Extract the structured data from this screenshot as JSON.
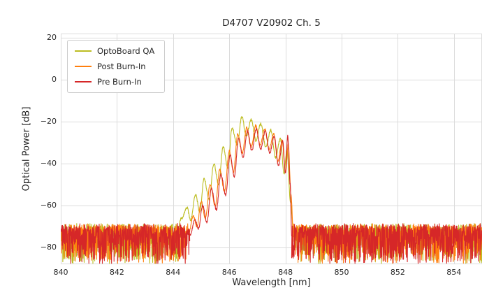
{
  "chart_data": {
    "type": "line",
    "title": "D4707 V20902 Ch. 5",
    "xlabel": "Wavelength [nm]",
    "ylabel": "Optical Power [dB]",
    "xlim": [
      840,
      855
    ],
    "ylim": [
      -88,
      22
    ],
    "xticks": [
      840,
      842,
      844,
      846,
      848,
      850,
      852,
      854
    ],
    "yticks": [
      20,
      0,
      -20,
      -40,
      -60,
      -80
    ],
    "grid": true,
    "legend_position": "upper-left",
    "background_color": "#ffffff",
    "grid_color": "#dcdcdc",
    "text_color": "#262626",
    "series": [
      {
        "name": "OptoBoard QA",
        "color": "#bcbd22",
        "signal_range": [
          844.15,
          848.32
        ],
        "noise": {
          "seed": 7,
          "floor_top_db": -70,
          "spike_depth_db": 17
        },
        "envelope": [
          [
            844.15,
            -72
          ],
          [
            844.3,
            -66
          ],
          [
            844.5,
            -61
          ],
          [
            844.62,
            -67
          ],
          [
            844.8,
            -55
          ],
          [
            844.95,
            -63
          ],
          [
            845.1,
            -47
          ],
          [
            845.28,
            -57
          ],
          [
            845.45,
            -40
          ],
          [
            845.62,
            -50
          ],
          [
            845.78,
            -32
          ],
          [
            845.95,
            -42
          ],
          [
            846.1,
            -23
          ],
          [
            846.28,
            -31
          ],
          [
            846.45,
            -17.5
          ],
          [
            846.6,
            -27
          ],
          [
            846.78,
            -19
          ],
          [
            846.95,
            -29
          ],
          [
            847.12,
            -21
          ],
          [
            847.3,
            -32
          ],
          [
            847.48,
            -24
          ],
          [
            847.65,
            -37
          ],
          [
            847.82,
            -28
          ],
          [
            847.95,
            -45
          ],
          [
            848.05,
            -33
          ],
          [
            848.18,
            -58
          ],
          [
            848.27,
            -70
          ],
          [
            848.32,
            -74
          ]
        ]
      },
      {
        "name": "Post Burn-In",
        "color": "#ff7f0e",
        "signal_range": [
          844.55,
          848.28
        ],
        "noise": {
          "seed": 13,
          "floor_top_db": -70,
          "spike_depth_db": 17
        },
        "envelope": [
          [
            844.55,
            -73
          ],
          [
            844.72,
            -65
          ],
          [
            844.85,
            -70
          ],
          [
            845.0,
            -58
          ],
          [
            845.15,
            -66
          ],
          [
            845.32,
            -50
          ],
          [
            845.5,
            -60
          ],
          [
            845.66,
            -43
          ],
          [
            845.83,
            -53
          ],
          [
            846.0,
            -34
          ],
          [
            846.15,
            -44
          ],
          [
            846.3,
            -26
          ],
          [
            846.46,
            -35
          ],
          [
            846.62,
            -23
          ],
          [
            846.78,
            -32
          ],
          [
            846.94,
            -22
          ],
          [
            847.1,
            -31
          ],
          [
            847.26,
            -23.5
          ],
          [
            847.42,
            -33
          ],
          [
            847.58,
            -26
          ],
          [
            847.73,
            -39
          ],
          [
            847.88,
            -29
          ],
          [
            848.0,
            -44
          ],
          [
            848.1,
            -31
          ],
          [
            848.2,
            -55
          ],
          [
            848.28,
            -73
          ]
        ]
      },
      {
        "name": "Pre Burn-In",
        "color": "#d62728",
        "signal_range": [
          844.6,
          848.22
        ],
        "noise": {
          "seed": 29,
          "floor_top_db": -70,
          "spike_depth_db": 17
        },
        "envelope": [
          [
            844.6,
            -74
          ],
          [
            844.78,
            -67
          ],
          [
            844.9,
            -71
          ],
          [
            845.05,
            -60
          ],
          [
            845.2,
            -68
          ],
          [
            845.36,
            -52
          ],
          [
            845.54,
            -62
          ],
          [
            845.7,
            -45
          ],
          [
            845.87,
            -55
          ],
          [
            846.03,
            -36
          ],
          [
            846.18,
            -46
          ],
          [
            846.33,
            -28
          ],
          [
            846.49,
            -37
          ],
          [
            846.65,
            -24.5
          ],
          [
            846.8,
            -34
          ],
          [
            846.96,
            -23.5
          ],
          [
            847.12,
            -33
          ],
          [
            847.28,
            -24.5
          ],
          [
            847.44,
            -35
          ],
          [
            847.6,
            -27
          ],
          [
            847.75,
            -41
          ],
          [
            847.9,
            -29
          ],
          [
            848.0,
            -45
          ],
          [
            848.08,
            -27
          ],
          [
            848.17,
            -50
          ],
          [
            848.22,
            -74
          ]
        ]
      }
    ]
  }
}
